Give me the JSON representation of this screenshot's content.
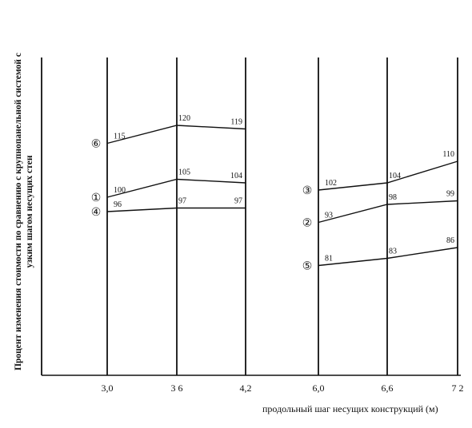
{
  "chart_data": {
    "type": "line",
    "ylabel_lines": [
      "Процент изменения стоимости по сравнению с крупнопанельной системой с",
      "узким шагом несущих стен"
    ],
    "xlabel": "продольный шаг несущих конструкций (м)",
    "x_ticks": [
      "3,0",
      "3 6",
      "4,2",
      "6,0",
      "6,6",
      "7 2"
    ],
    "grid": "vertical lines at each x tick",
    "series": [
      {
        "name": "6",
        "marker": "⑥",
        "x": [
          "3,0",
          "3 6",
          "4,2"
        ],
        "values": [
          115,
          120,
          119
        ]
      },
      {
        "name": "1",
        "marker": "①",
        "x": [
          "3,0",
          "3 6",
          "4,2"
        ],
        "values": [
          100,
          105,
          104
        ]
      },
      {
        "name": "4",
        "marker": "④",
        "x": [
          "3,0",
          "3 6",
          "4,2"
        ],
        "values": [
          96,
          97,
          97
        ]
      },
      {
        "name": "3",
        "marker": "③",
        "x": [
          "6,0",
          "6,6",
          "7 2"
        ],
        "values": [
          102,
          104,
          110
        ]
      },
      {
        "name": "2",
        "marker": "②",
        "x": [
          "6,0",
          "6,6",
          "7 2"
        ],
        "values": [
          93,
          98,
          99
        ]
      },
      {
        "name": "5",
        "marker": "⑤",
        "x": [
          "6,0",
          "6,6",
          "7 2"
        ],
        "values": [
          81,
          83,
          86
        ]
      }
    ]
  }
}
